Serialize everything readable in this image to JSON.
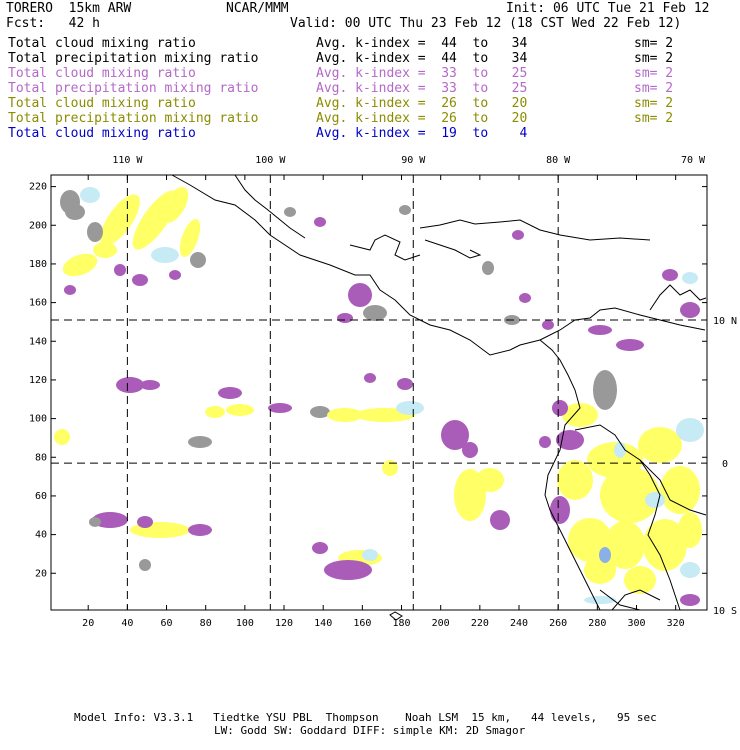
{
  "header": {
    "model": "TORERO  15km ARW",
    "org": "NCAR/MMM",
    "init": "Init: 06 UTC Tue 21 Feb 12",
    "fcst": "Fcst:   42 h",
    "valid": "Valid: 00 UTC Thu 23 Feb 12 (18 CST Wed 22 Feb 12)"
  },
  "legend": [
    {
      "field": "Total cloud mixing ratio",
      "k": "Avg. k-index =  44  to   34",
      "sm": "sm= 2",
      "color": "#000000"
    },
    {
      "field": "Total precipitation mixing ratio",
      "k": "Avg. k-index =  44  to   34",
      "sm": "sm= 2",
      "color": "#000000"
    },
    {
      "field": "Total cloud mixing ratio",
      "k": "Avg. k-index =  33  to   25",
      "sm": "sm= 2",
      "color": "#b469c8"
    },
    {
      "field": "Total precipitation mixing ratio",
      "k": "Avg. k-index =  33  to   25",
      "sm": "sm= 2",
      "color": "#b469c8"
    },
    {
      "field": "Total cloud mixing ratio",
      "k": "Avg. k-index =  26  to   20",
      "sm": "sm= 2",
      "color": "#8c8c00"
    },
    {
      "field": "Total precipitation mixing ratio",
      "k": "Avg. k-index =  26  to   20",
      "sm": "sm= 2",
      "color": "#8c8c00"
    },
    {
      "field": "Total cloud mixing ratio",
      "k": "Avg. k-index =  19  to    4",
      "sm": "",
      "color": "#0000c8"
    }
  ],
  "map": {
    "top_lon_labels": [
      "110 W",
      "100 W",
      "90 W",
      "80 W",
      "70 W"
    ],
    "right_lat_labels": [
      "10 N",
      "0",
      "10 S"
    ],
    "y_ticks": [
      "220",
      "200",
      "180",
      "160",
      "140",
      "120",
      "100",
      "80",
      "60",
      "40",
      "20"
    ],
    "x_ticks": [
      "20",
      "40",
      "60",
      "80",
      "100",
      "120",
      "140",
      "160",
      "180",
      "200",
      "220",
      "240",
      "260",
      "280",
      "300",
      "320"
    ],
    "grid_x_index": [
      40,
      113,
      186,
      260
    ],
    "grid_y_index": [
      151,
      77
    ],
    "x_range": [
      1,
      336
    ],
    "y_range": [
      1,
      226
    ],
    "colors": {
      "gray": "#999999",
      "purple": "#a95cb8",
      "yellow": "#ffff66",
      "lightblue": "#c6ebf5",
      "blue": "#8ab0e6"
    }
  },
  "footer": {
    "line1": "Model Info: V3.3.1   Tiedtke YSU PBL  Thompson    Noah LSM  15 km,   44 levels,   95 sec",
    "line2": "LW: Godd SW: Goddard DIFF: simple KM: 2D Smagor"
  }
}
